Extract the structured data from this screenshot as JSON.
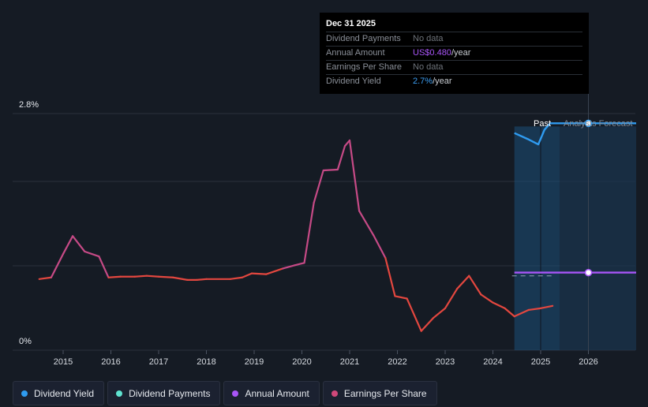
{
  "tooltip": {
    "date": "Dec 31 2025",
    "rows": [
      {
        "label": "Dividend Payments",
        "value": "No data",
        "unit": "",
        "color": "#6d7279"
      },
      {
        "label": "Annual Amount",
        "value": "US$0.480",
        "unit": "/year",
        "color": "#a855f7"
      },
      {
        "label": "Earnings Per Share",
        "value": "No data",
        "unit": "",
        "color": "#6d7279"
      },
      {
        "label": "Dividend Yield",
        "value": "2.7%",
        "unit": "/year",
        "color": "#3b9cf0"
      }
    ]
  },
  "labels": {
    "past": "Past",
    "forecast": "Analysts Forecast"
  },
  "legend": [
    {
      "label": "Dividend Yield",
      "color": "#2f9bf0"
    },
    {
      "label": "Dividend Payments",
      "color": "#5fe3d0"
    },
    {
      "label": "Annual Amount",
      "color": "#a855f7"
    },
    {
      "label": "Earnings Per Share",
      "color": "#d0487a"
    }
  ],
  "chart_data": {
    "type": "line",
    "x_ticks": [
      "2015",
      "2016",
      "2017",
      "2018",
      "2019",
      "2020",
      "2021",
      "2022",
      "2023",
      "2024",
      "2025",
      "2026"
    ],
    "y_ticks": [
      "2.8%",
      "0%"
    ],
    "ylim": [
      0,
      2.8
    ],
    "xlim": [
      2014.5,
      2027.0
    ],
    "series": [
      {
        "name": "Earnings Per Share",
        "color_segments": [
          "#e3473f",
          "#c64a86"
        ],
        "points": [
          [
            2014.5,
            0.76
          ],
          [
            2014.75,
            0.78
          ],
          [
            2015.0,
            1.07
          ],
          [
            2015.2,
            1.29
          ],
          [
            2015.45,
            1.1
          ],
          [
            2015.75,
            1.04
          ],
          [
            2015.95,
            0.78
          ],
          [
            2016.2,
            0.79
          ],
          [
            2016.5,
            0.79
          ],
          [
            2016.75,
            0.8
          ],
          [
            2017.0,
            0.79
          ],
          [
            2017.3,
            0.78
          ],
          [
            2017.6,
            0.75
          ],
          [
            2017.8,
            0.75
          ],
          [
            2018.0,
            0.76
          ],
          [
            2018.5,
            0.76
          ],
          [
            2018.75,
            0.78
          ],
          [
            2018.95,
            0.83
          ],
          [
            2019.25,
            0.82
          ],
          [
            2019.6,
            0.89
          ],
          [
            2019.85,
            0.93
          ],
          [
            2020.05,
            0.96
          ],
          [
            2020.25,
            1.7
          ],
          [
            2020.45,
            2.1
          ],
          [
            2020.75,
            2.11
          ],
          [
            2020.9,
            2.4
          ],
          [
            2021.0,
            2.47
          ],
          [
            2021.2,
            1.6
          ],
          [
            2021.5,
            1.3
          ],
          [
            2021.75,
            1.02
          ],
          [
            2021.95,
            0.55
          ],
          [
            2022.2,
            0.52
          ],
          [
            2022.5,
            0.12
          ],
          [
            2022.75,
            0.28
          ],
          [
            2023.0,
            0.4
          ],
          [
            2023.25,
            0.64
          ],
          [
            2023.5,
            0.8
          ],
          [
            2023.75,
            0.57
          ],
          [
            2024.0,
            0.47
          ],
          [
            2024.25,
            0.4
          ],
          [
            2024.45,
            0.3
          ],
          [
            2024.75,
            0.38
          ],
          [
            2025.0,
            0.4
          ],
          [
            2025.25,
            0.43
          ]
        ]
      },
      {
        "name": "Dividend Yield",
        "color": "#2f9bf0",
        "points": [
          [
            2024.45,
            2.56
          ],
          [
            2024.75,
            2.48
          ],
          [
            2024.95,
            2.42
          ],
          [
            2025.08,
            2.6
          ],
          [
            2025.2,
            2.68
          ],
          [
            2026.0,
            2.68
          ],
          [
            2027.0,
            2.68
          ]
        ]
      },
      {
        "name": "Annual Amount",
        "color": "#a855f7",
        "points": [
          [
            2024.45,
            0.84
          ],
          [
            2027.0,
            0.84
          ]
        ]
      }
    ],
    "past_region": [
      2024.45,
      2025.4
    ],
    "forecast_region": [
      2025.4,
      2027.0
    ],
    "cursor_x": 2026.0
  }
}
